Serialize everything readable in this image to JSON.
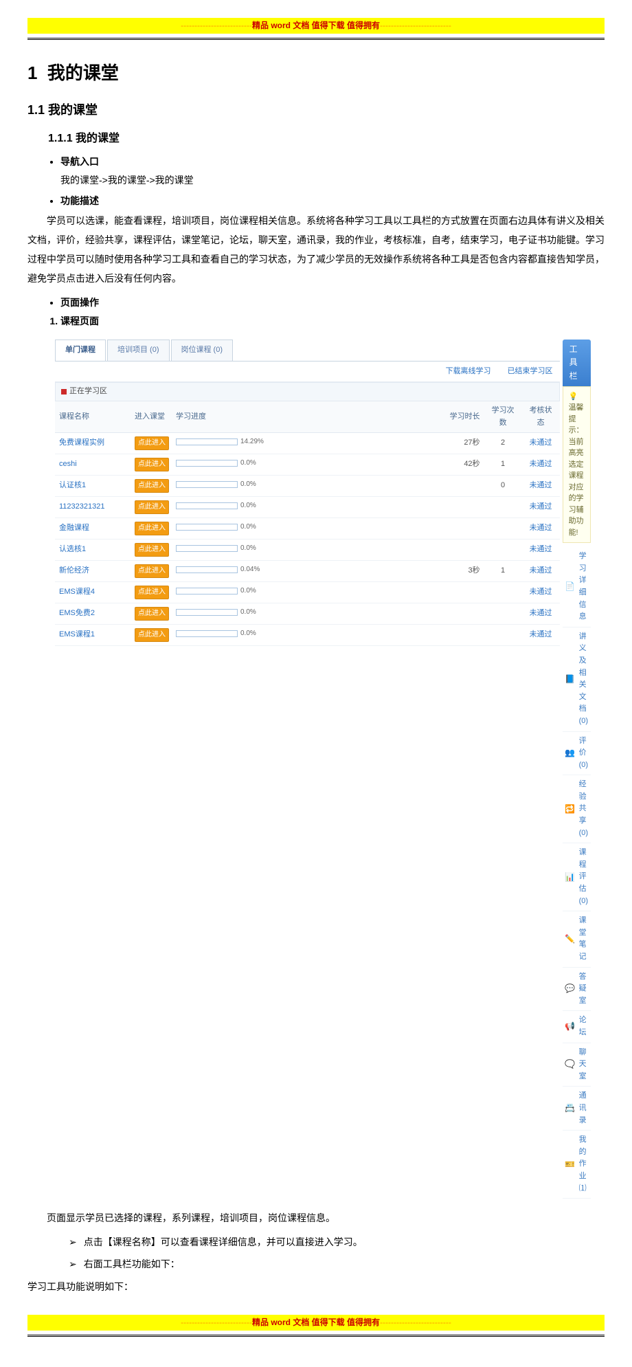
{
  "banner": {
    "dash_color": "#ff9900",
    "bg_color": "#ffff00",
    "mid_color": "#cc0000",
    "dashes": "--------------------------",
    "text": "精品 word 文档  值得下载  值得拥有"
  },
  "headings": {
    "h1_num": "1",
    "h1_label": "我的课堂",
    "h2_num": "1.1",
    "h2_label": "我的课堂",
    "h3_num": "1.1.1",
    "h3_label": "我的课堂"
  },
  "bullets": {
    "nav_label": "导航入口",
    "nav_path": "我的课堂->我的课堂->我的课堂",
    "func_label": "功能描述",
    "func_desc": "学员可以选课，能查看课程，培训项目，岗位课程相关信息。系统将各种学习工具以工具栏的方式放置在页面右边具体有讲义及相关文档，评价，经验共享，课程评估，课堂笔记，论坛，聊天室，通讯录，我的作业，考核标准，自考，结束学习，电子证书功能键。学习过程中学员可以随时使用各种学习工具和查看自己的学习状态，为了减少学员的无效操作系统将各种工具是否包含内容都直接告知学员，避免学员点击进入后没有任何内容。",
    "page_label": "页面操作",
    "page_item1": "课程页面"
  },
  "screenshot": {
    "tabs": [
      {
        "label": "单门课程",
        "active": true
      },
      {
        "label": "培训项目 (0)",
        "active": false
      },
      {
        "label": "岗位课程 (0)",
        "active": false
      }
    ],
    "links": [
      "下载离线学习",
      "已结束学习区"
    ],
    "section_header": "正在学习区",
    "columns": [
      "课程名称",
      "进入课堂",
      "学习进度",
      "",
      "学习时长",
      "学习次数",
      "考核状态"
    ],
    "enter_label": "点此进入",
    "rows": [
      {
        "name": "免费课程实例",
        "progress_pct": 14.29,
        "duration": "27秒",
        "count": "2",
        "status": "未通过"
      },
      {
        "name": "ceshi",
        "progress_pct": 0.0,
        "duration": "42秒",
        "count": "1",
        "status": "未通过"
      },
      {
        "name": "认证核1",
        "progress_pct": 0.0,
        "duration": "",
        "count": "0",
        "status": "未通过"
      },
      {
        "name": "11232321321",
        "progress_pct": 0.0,
        "duration": "",
        "count": "",
        "status": "未通过"
      },
      {
        "name": "金融课程",
        "progress_pct": 0.0,
        "duration": "",
        "count": "",
        "status": "未通过"
      },
      {
        "name": "认选核1",
        "progress_pct": 0.0,
        "duration": "",
        "count": "",
        "status": "未通过"
      },
      {
        "name": "新伦经济",
        "progress_pct": 0.04,
        "duration": "3秒",
        "count": "1",
        "status": "未通过"
      },
      {
        "name": "EMS课程4",
        "progress_pct": 0.0,
        "duration": "",
        "count": "",
        "status": "未通过"
      },
      {
        "name": "EMS免费2",
        "progress_pct": 0.0,
        "duration": "",
        "count": "",
        "status": "未通过"
      },
      {
        "name": "EMS课程1",
        "progress_pct": 0.0,
        "duration": "",
        "count": "",
        "status": "未通过"
      }
    ],
    "status_color": "#2a72c3",
    "progress_bar_color": "#4a90d9",
    "toolbox_title": "工具栏",
    "tip_text": "温馨提示：当前高亮选定课程对应的学习辅助功能!",
    "tools": [
      {
        "icon": "📄",
        "label": "学习详细信息",
        "icon_name": "doc-icon"
      },
      {
        "icon": "📘",
        "label": "讲义及相关文档 (0)",
        "icon_name": "book-icon"
      },
      {
        "icon": "👥",
        "label": "评价 (0)",
        "icon_name": "people-icon"
      },
      {
        "icon": "🔁",
        "label": "经验共享 (0)",
        "icon_name": "share-icon"
      },
      {
        "icon": "📊",
        "label": "课程评估 (0)",
        "icon_name": "chart-icon"
      },
      {
        "icon": "✏️",
        "label": "课堂笔记",
        "icon_name": "pencil-icon"
      },
      {
        "icon": "💬",
        "label": "答疑室",
        "icon_name": "qa-icon"
      },
      {
        "icon": "📢",
        "label": "论坛",
        "icon_name": "forum-icon"
      },
      {
        "icon": "🗨️",
        "label": "聊天室",
        "icon_name": "chat-icon"
      },
      {
        "icon": "📇",
        "label": "通讯录",
        "icon_name": "contacts-icon"
      },
      {
        "icon": "🎫",
        "label": "我的作业⑴",
        "icon_name": "homework-icon"
      }
    ]
  },
  "after": {
    "line1": "页面显示学员已选择的课程，系列课程，培训项目，岗位课程信息。",
    "a1": "点击【课程名称】可以查看课程详细信息，并可以直接进入学习。",
    "a2": "右面工具栏功能如下：",
    "line2": "学习工具功能说明如下："
  }
}
